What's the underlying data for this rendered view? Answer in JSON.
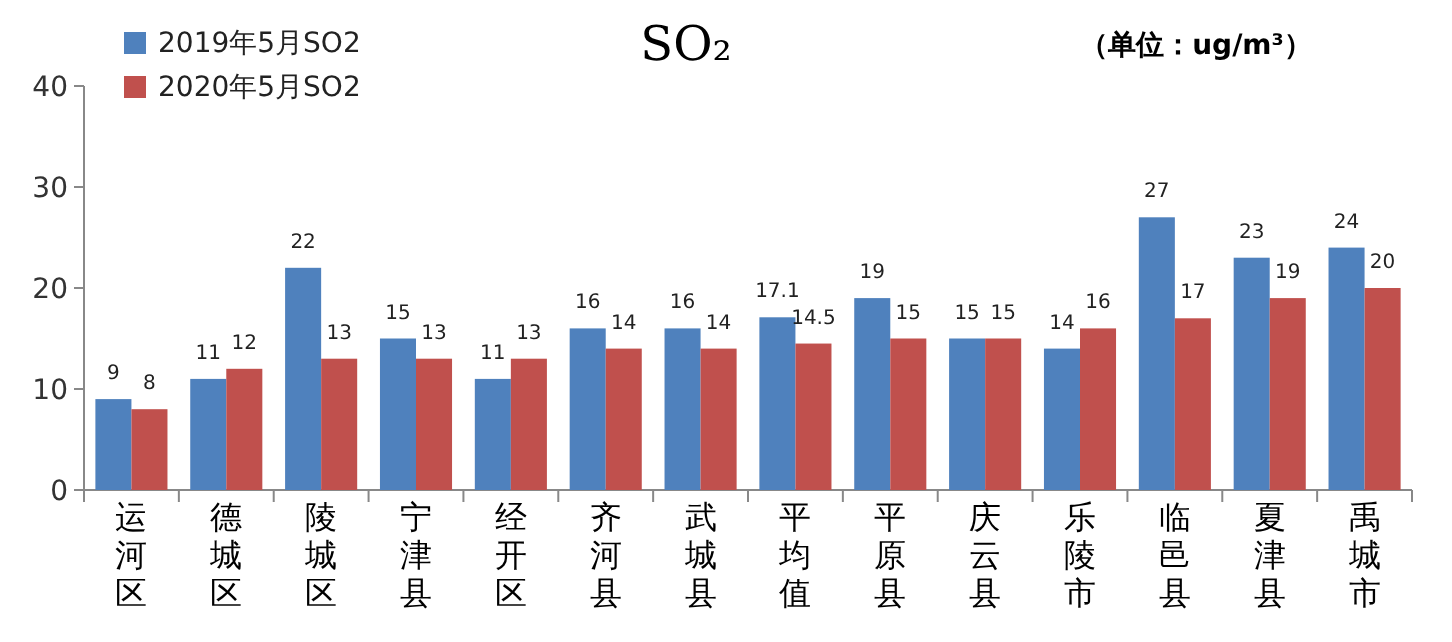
{
  "chart_data": {
    "type": "bar",
    "title": "SO₂",
    "annotations": [
      "（单位：ug/m³）"
    ],
    "categories": [
      "运河区",
      "德城区",
      "陵城区",
      "宁津县",
      "经开区",
      "齐河县",
      "武城县",
      "平均值",
      "平原县",
      "庆云县",
      "乐陵市",
      "临邑县",
      "夏津县",
      "禹城市"
    ],
    "series": [
      {
        "name": "2019年5月SO2",
        "color": "#4f81bd",
        "values": [
          9,
          11,
          22,
          15,
          11,
          16,
          16,
          17.1,
          19,
          15,
          14,
          27,
          23,
          24
        ]
      },
      {
        "name": "2020年5月SO2",
        "color": "#c0504d",
        "values": [
          8,
          12,
          13,
          13,
          13,
          14,
          14,
          14.5,
          15,
          15,
          16,
          17,
          19,
          20
        ]
      }
    ],
    "ylim": [
      0,
      40
    ],
    "yticks": [
      0,
      10,
      20,
      30,
      40
    ],
    "data_labels": true,
    "legend": "top left",
    "grid": false
  }
}
